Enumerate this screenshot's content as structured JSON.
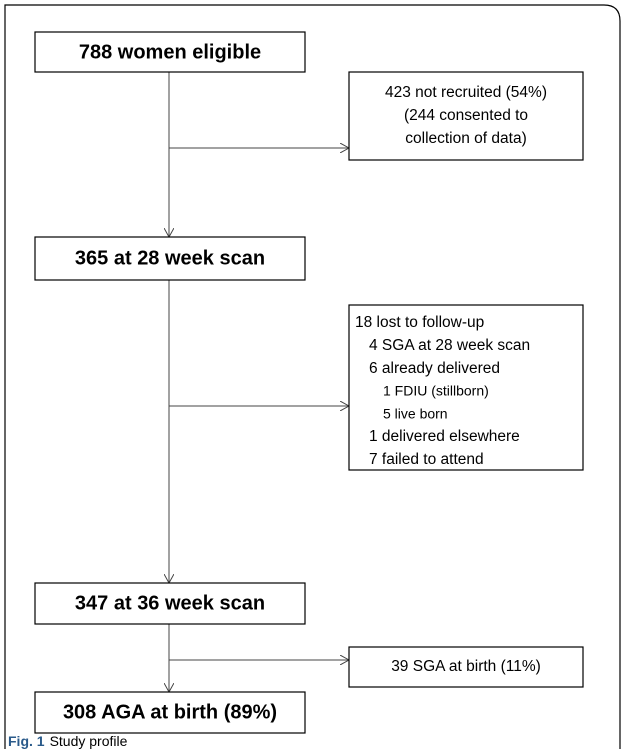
{
  "nodes": [
    {
      "label": "788 women eligible"
    },
    {
      "lines": [
        "423 not recruited (54%)",
        "(244 consented to",
        "collection of data)"
      ]
    },
    {
      "label": "365 at 28 week scan"
    },
    {
      "lines": [
        "18 lost to follow-up",
        "4 SGA at 28 week scan",
        "6 already delivered",
        "1 FDIU (stillborn)",
        "5 live born",
        "1 delivered elsewhere",
        "7 failed to attend"
      ]
    },
    {
      "label": "347 at 36 week scan"
    },
    {
      "label": "39 SGA at birth (11%)"
    },
    {
      "label": "308 AGA at birth (89%)"
    }
  ],
  "caption": {
    "label": "Fig. 1",
    "text": "Study profile"
  }
}
